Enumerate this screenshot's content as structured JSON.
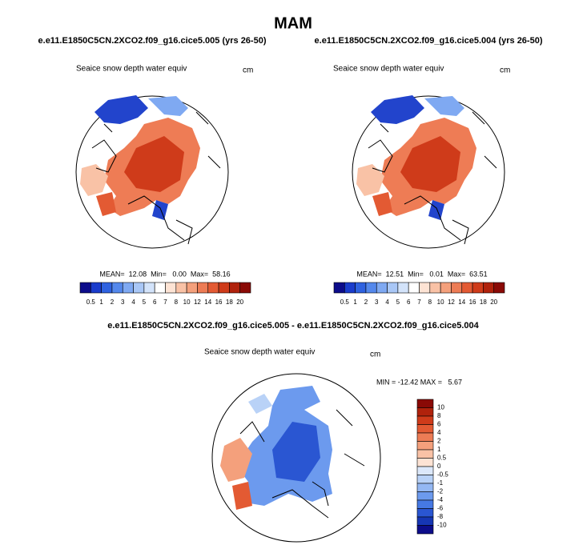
{
  "title": "MAM",
  "panels": [
    {
      "case": "e.e11.E1850C5CN.2XCO2.f09_g16.cice5.005 (yrs 26-50)",
      "variable": "Seaice snow depth water equiv",
      "units": "cm",
      "stats": "MEAN=  12.08  Min=   0.00  Max=  58.16"
    },
    {
      "case": "e.e11.E1850C5CN.2XCO2.f09_g16.cice5.004 (yrs 26-50)",
      "variable": "Seaice snow depth water equiv",
      "units": "cm",
      "stats": "MEAN=  12.51  Min=   0.01  Max=  63.51"
    }
  ],
  "colorbar": {
    "labels": [
      "0.5",
      "1",
      "2",
      "3",
      "4",
      "5",
      "6",
      "7",
      "8",
      "10",
      "12",
      "14",
      "16",
      "18",
      "20"
    ],
    "colors": [
      "#0c0c8a",
      "#1a3ccc",
      "#2f62e0",
      "#5488ec",
      "#7fa9f2",
      "#a9c7f6",
      "#d3e3fa",
      "#ffffff",
      "#fde3d4",
      "#f9c2a6",
      "#f4a07c",
      "#ed7c55",
      "#e35a33",
      "#cf3b1a",
      "#b0220c",
      "#8a0a06"
    ]
  },
  "difference": {
    "title": "e.e11.E1850C5CN.2XCO2.f09_g16.cice5.005 - e.e11.E1850C5CN.2XCO2.f09_g16.cice5.004",
    "variable": "Seaice snow depth water equiv",
    "units": "cm",
    "stats": "MIN = -12.42 MAX =   5.67",
    "colorbar": {
      "labels": [
        "10",
        "8",
        "6",
        "4",
        "2",
        "1",
        "0.5",
        "0",
        "-0.5",
        "-1",
        "-2",
        "-4",
        "-6",
        "-8",
        "-10"
      ],
      "colors": [
        "#8a0a06",
        "#b0220c",
        "#cf3b1a",
        "#e35a33",
        "#ed7c55",
        "#f4a07c",
        "#f9c2a6",
        "#fde3d4",
        "#dce8fa",
        "#b9d2f7",
        "#94b8f3",
        "#6c9aee",
        "#4679e4",
        "#2a56d2",
        "#1636b4",
        "#0c0c8a"
      ]
    }
  }
}
